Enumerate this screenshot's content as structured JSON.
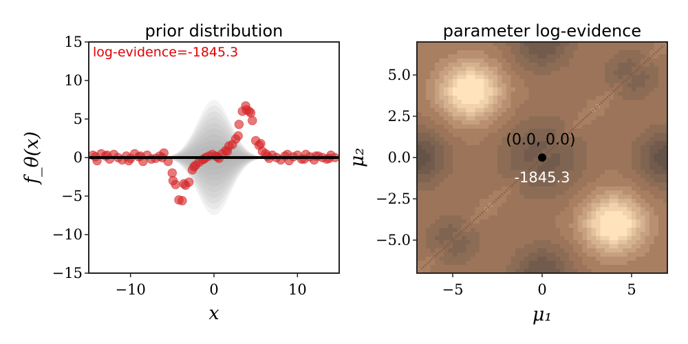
{
  "chart_data": [
    {
      "type": "scatter",
      "title": "prior distribution",
      "xlabel": "x",
      "ylabel": "f_θ(x)",
      "xlim": [
        -15,
        15
      ],
      "ylim": [
        -15,
        15
      ],
      "xticks": [
        -10,
        0,
        10
      ],
      "yticks": [
        15,
        10,
        5,
        0,
        -5,
        -10,
        -15
      ],
      "xtick_labels": [
        "−10",
        "0",
        "10"
      ],
      "ytick_labels": [
        "15",
        "10",
        "5",
        "0",
        "−5",
        "−10",
        "−15"
      ],
      "annotation": "log-evidence=-1845.3",
      "colors": {
        "points": "#d62728",
        "mean_line": "#000000",
        "band": "#9a9a9a",
        "annotation": "#e00000"
      },
      "prior_band": {
        "center": 0,
        "max_halfwidth": 7.5,
        "width": 2.0,
        "levels": 10
      },
      "series": [
        {
          "x": [
            -14.5,
            -14.0,
            -13.5,
            -13.0,
            -12.5,
            -12.0,
            -11.5,
            -11.0,
            -10.5,
            -10.0,
            -9.5,
            -9.0,
            -8.5,
            -8.0,
            -7.5,
            -7.0,
            -6.5,
            -6.0,
            -5.5,
            -5.0,
            -4.6,
            -4.2,
            -3.8,
            -3.4,
            -3.0,
            -2.6,
            -2.2,
            -1.8,
            -1.4,
            -1.0,
            -0.6,
            -0.2,
            0.2,
            0.6,
            1.0,
            1.4,
            1.8,
            2.2,
            2.6,
            3.0,
            3.4,
            3.8,
            4.2,
            4.6,
            5.0,
            5.4,
            5.8,
            6.2,
            6.6,
            7.0,
            7.5,
            8.0,
            8.5,
            9.0,
            9.5,
            10.0,
            10.5,
            11.0,
            11.5,
            12.0,
            12.5,
            13.0,
            13.5,
            14.0,
            14.5,
            -14.2,
            -12.8,
            -10.2,
            -8.8,
            -6.2,
            -4.9,
            -3.6,
            -2.4,
            -1.2,
            0.4,
            1.6,
            2.9,
            3.9,
            4.4,
            5.6,
            6.4,
            8.8,
            10.8,
            12.2,
            13.8
          ],
          "y": [
            0.3,
            -0.4,
            0.5,
            0.2,
            -0.2,
            0.4,
            0.0,
            -0.3,
            0.2,
            -0.1,
            0.5,
            0.1,
            -0.5,
            0.3,
            -0.2,
            -0.1,
            0.2,
            0.6,
            -0.5,
            -2.0,
            -3.5,
            -5.5,
            -5.6,
            -3.6,
            -3.2,
            -1.6,
            -1.0,
            -0.6,
            -0.3,
            0.0,
            0.2,
            0.4,
            0.2,
            -0.1,
            0.5,
            0.9,
            1.5,
            1.7,
            2.4,
            4.3,
            6.0,
            6.7,
            6.0,
            4.8,
            2.2,
            1.6,
            0.8,
            0.5,
            -0.1,
            0.3,
            0.0,
            -0.3,
            0.2,
            -0.4,
            0.1,
            0.3,
            -0.2,
            0.4,
            0.1,
            -0.3,
            0.2,
            0.0,
            -0.2,
            0.3,
            0.0,
            0.1,
            0.3,
            -0.4,
            0.2,
            0.0,
            -3.0,
            -3.4,
            -1.2,
            -0.2,
            0.1,
            0.8,
            2.8,
            6.2,
            5.8,
            1.8,
            0.2,
            0.4,
            -0.2,
            0.2,
            -0.1
          ]
        }
      ]
    },
    {
      "type": "heatmap",
      "title": "parameter log-evidence",
      "xlabel": "μ₁",
      "ylabel": "μ₂",
      "xlim": [
        -7,
        7
      ],
      "ylim": [
        -7,
        7
      ],
      "xticks": [
        -5,
        0,
        5
      ],
      "yticks": [
        5.0,
        2.5,
        0.0,
        -2.5,
        -5.0
      ],
      "xtick_labels": [
        "−5",
        "0",
        "5"
      ],
      "ytick_labels": [
        "5.0",
        "2.5",
        "0.0",
        "−2.5",
        "−5.0"
      ],
      "colors": {
        "low": "#3a3a3a",
        "mid": "#a57a5d",
        "high": "#ffe3bc",
        "marker": "#000000"
      },
      "peaks": [
        {
          "x": -4,
          "y": 4
        },
        {
          "x": 4,
          "y": -4
        }
      ],
      "marker": {
        "x": 0,
        "y": 0,
        "label": "(0.0, 0.0)",
        "value_label": "-1845.3"
      },
      "contour_levels": 14
    }
  ]
}
